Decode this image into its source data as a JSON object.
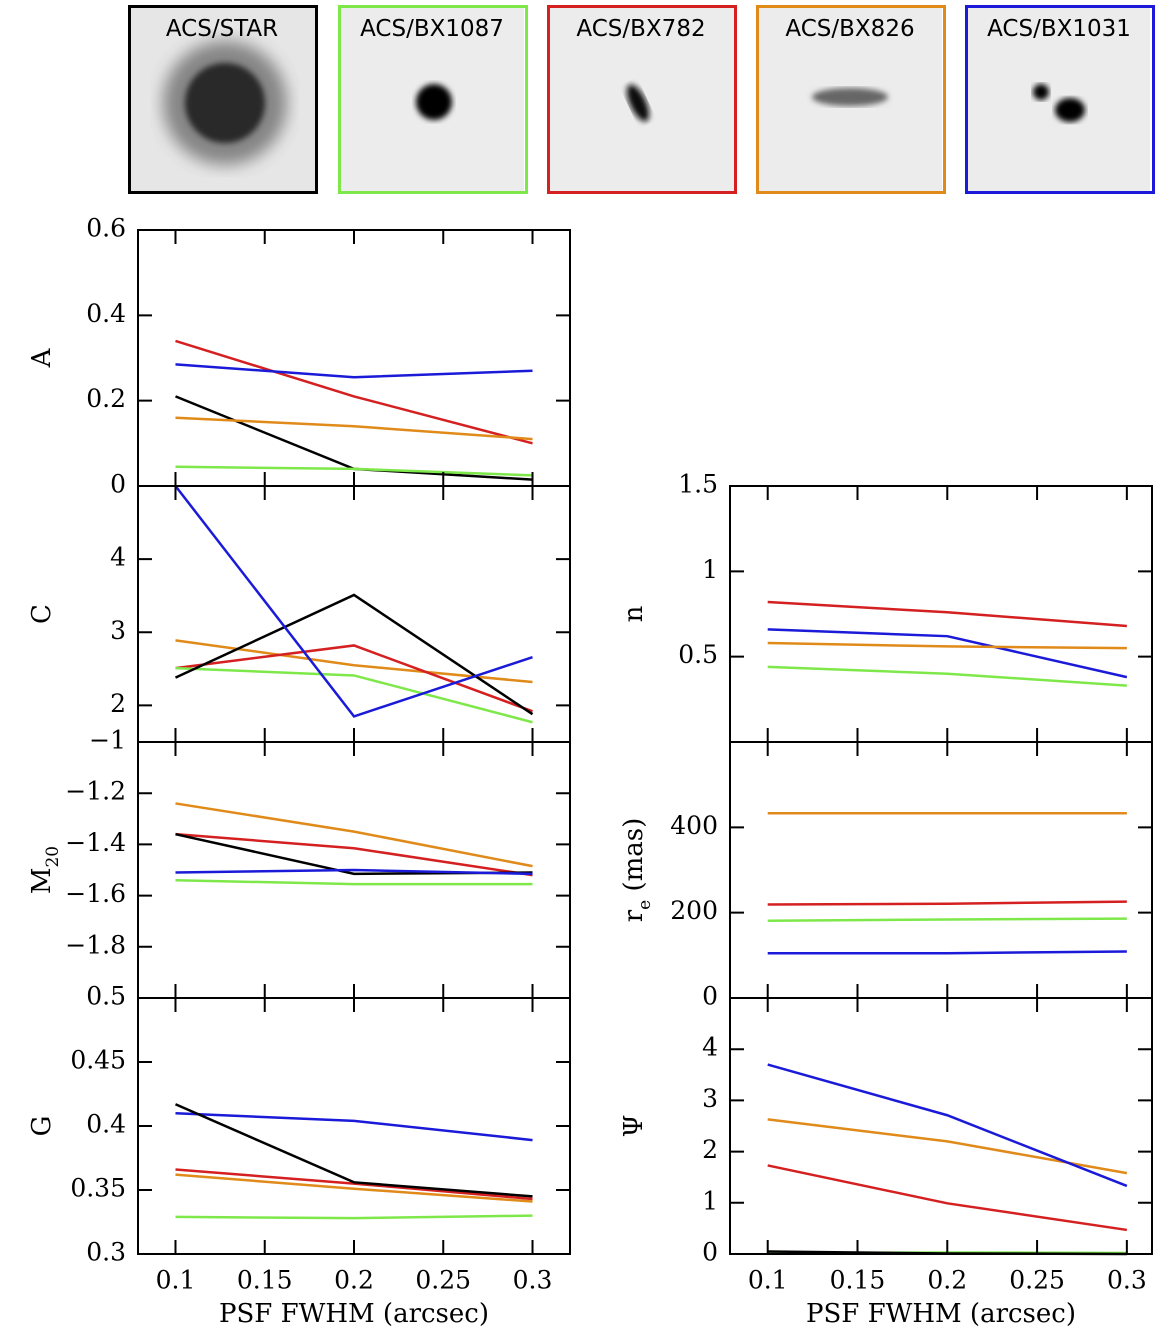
{
  "thumbnails": [
    {
      "label": "ACS/STAR",
      "color": "#000000"
    },
    {
      "label": "ACS/BX1087",
      "color": "#7ee84a"
    },
    {
      "label": "ACS/BX782",
      "color": "#d42020"
    },
    {
      "label": "ACS/BX826",
      "color": "#e08a1a"
    },
    {
      "label": "ACS/BX1031",
      "color": "#1a1ad8"
    }
  ],
  "chart_data": [
    {
      "type": "line",
      "ylabel": [
        {
          "text": "A"
        }
      ],
      "x": [
        0.1,
        0.2,
        0.3
      ],
      "xlim": [
        0.079,
        0.321
      ],
      "ylim": [
        0,
        0.6
      ],
      "xticks": [
        0.1,
        0.15,
        0.2,
        0.25,
        0.3
      ],
      "yticks": [
        0,
        0.2,
        0.4,
        0.6
      ],
      "series": [
        {
          "color": "#d42020",
          "values": [
            0.34,
            0.21,
            0.1
          ]
        },
        {
          "color": "#1a1ad8",
          "values": [
            0.285,
            0.255,
            0.27
          ]
        },
        {
          "color": "#000000",
          "values": [
            0.21,
            0.04,
            0.015
          ]
        },
        {
          "color": "#e08a1a",
          "values": [
            0.16,
            0.14,
            0.11
          ]
        },
        {
          "color": "#7ee84a",
          "values": [
            0.045,
            0.04,
            0.025
          ]
        }
      ]
    },
    {
      "type": "line",
      "ylabel": [
        {
          "text": "C"
        }
      ],
      "x": [
        0.1,
        0.2,
        0.3
      ],
      "xlim": [
        0.079,
        0.321
      ],
      "ylim": [
        1.5,
        5
      ],
      "xticks": [
        0.1,
        0.15,
        0.2,
        0.25,
        0.3
      ],
      "yticks": [
        2,
        3,
        4
      ],
      "series": [
        {
          "color": "#e08a1a",
          "values": [
            2.89,
            2.55,
            2.32
          ]
        },
        {
          "color": "#d42020",
          "values": [
            2.51,
            2.82,
            1.92
          ]
        },
        {
          "color": "#7ee84a",
          "values": [
            2.51,
            2.41,
            1.77
          ]
        },
        {
          "color": "#000000",
          "values": [
            2.38,
            3.51,
            1.88
          ]
        },
        {
          "color": "#1a1ad8",
          "values": [
            5.0,
            1.85,
            2.66
          ]
        }
      ]
    },
    {
      "type": "line",
      "ylabel": [
        {
          "text": "M"
        },
        {
          "text": "20",
          "sub": true
        }
      ],
      "x": [
        0.1,
        0.2,
        0.3
      ],
      "xlim": [
        0.079,
        0.321
      ],
      "ylim": [
        -2,
        -1
      ],
      "xticks": [
        0.1,
        0.15,
        0.2,
        0.25,
        0.3
      ],
      "yticks": [
        {
          "value": -1,
          "label": "−1"
        },
        {
          "value": -1.2,
          "label": "−1.2"
        },
        {
          "value": -1.4,
          "label": "−1.4"
        },
        {
          "value": -1.6,
          "label": "−1.6"
        },
        {
          "value": -1.8,
          "label": "−1.8"
        }
      ],
      "series": [
        {
          "color": "#e08a1a",
          "values": [
            -1.24,
            -1.35,
            -1.485
          ]
        },
        {
          "color": "#d42020",
          "values": [
            -1.36,
            -1.415,
            -1.52
          ]
        },
        {
          "color": "#000000",
          "values": [
            -1.36,
            -1.515,
            -1.51
          ]
        },
        {
          "color": "#1a1ad8",
          "values": [
            -1.51,
            -1.5,
            -1.515
          ]
        },
        {
          "color": "#7ee84a",
          "values": [
            -1.54,
            -1.555,
            -1.555
          ]
        }
      ]
    },
    {
      "type": "line",
      "ylabel": [
        {
          "text": "G"
        }
      ],
      "xlabel": "PSF FWHM (arcsec)",
      "x": [
        0.1,
        0.2,
        0.3
      ],
      "xlim": [
        0.079,
        0.321
      ],
      "ylim": [
        0.3,
        0.5
      ],
      "xticks": [
        0.1,
        0.15,
        0.2,
        0.25,
        0.3
      ],
      "xtick_labels": true,
      "yticks": [
        0.3,
        0.35,
        0.4,
        0.45,
        0.5
      ],
      "series": [
        {
          "color": "#7ee84a",
          "values": [
            0.329,
            0.328,
            0.33
          ]
        },
        {
          "color": "#e08a1a",
          "values": [
            0.362,
            0.351,
            0.341
          ]
        },
        {
          "color": "#d42020",
          "values": [
            0.366,
            0.355,
            0.343
          ]
        },
        {
          "color": "#1a1ad8",
          "values": [
            0.41,
            0.404,
            0.389
          ]
        },
        {
          "color": "#000000",
          "values": [
            0.417,
            0.356,
            0.345
          ]
        }
      ]
    },
    {
      "type": "line",
      "ylabel": [
        {
          "text": "n"
        }
      ],
      "x": [
        0.1,
        0.2,
        0.3
      ],
      "xlim": [
        0.079,
        0.314
      ],
      "ylim": [
        0,
        1.5
      ],
      "xticks": [
        0.1,
        0.15,
        0.2,
        0.25,
        0.3
      ],
      "yticks": [
        0.5,
        1,
        1.5
      ],
      "series": [
        {
          "color": "#d42020",
          "values": [
            0.82,
            0.76,
            0.68
          ]
        },
        {
          "color": "#1a1ad8",
          "values": [
            0.66,
            0.62,
            0.38
          ]
        },
        {
          "color": "#e08a1a",
          "values": [
            0.58,
            0.56,
            0.55
          ]
        },
        {
          "color": "#7ee84a",
          "values": [
            0.44,
            0.4,
            0.33
          ]
        }
      ]
    },
    {
      "type": "line",
      "ylabel": [
        {
          "text": "r"
        },
        {
          "text": "e",
          "sub": true
        },
        {
          "text": " (mas)"
        }
      ],
      "x": [
        0.1,
        0.2,
        0.3
      ],
      "xlim": [
        0.079,
        0.314
      ],
      "ylim": [
        0,
        600
      ],
      "xticks": [
        0.1,
        0.15,
        0.2,
        0.25,
        0.3
      ],
      "yticks": [
        0,
        200,
        400
      ],
      "series": [
        {
          "color": "#e08a1a",
          "values": [
            433,
            433,
            433
          ]
        },
        {
          "color": "#d42020",
          "values": [
            219,
            221,
            226
          ]
        },
        {
          "color": "#7ee84a",
          "values": [
            181,
            184,
            186
          ]
        },
        {
          "color": "#1a1ad8",
          "values": [
            105,
            105,
            109
          ]
        }
      ]
    },
    {
      "type": "line",
      "ylabel": [
        {
          "text": "Ψ"
        }
      ],
      "xlabel": "PSF FWHM (arcsec)",
      "x": [
        0.1,
        0.2,
        0.3
      ],
      "xlim": [
        0.079,
        0.314
      ],
      "ylim": [
        0,
        5
      ],
      "xticks": [
        0.1,
        0.15,
        0.2,
        0.25,
        0.3
      ],
      "xtick_labels": true,
      "yticks": [
        0,
        1,
        2,
        3,
        4
      ],
      "series": [
        {
          "color": "#e08a1a",
          "values": [
            2.63,
            2.2,
            1.58
          ]
        },
        {
          "color": "#1a1ad8",
          "values": [
            3.7,
            2.71,
            1.33
          ]
        },
        {
          "color": "#d42020",
          "values": [
            1.73,
            0.99,
            0.47
          ]
        },
        {
          "color": "#7ee84a",
          "values": [
            0.02,
            0.03,
            0.02
          ]
        },
        {
          "color": "#000000",
          "values": [
            0.05,
            0.01,
            0.0
          ]
        }
      ]
    }
  ]
}
